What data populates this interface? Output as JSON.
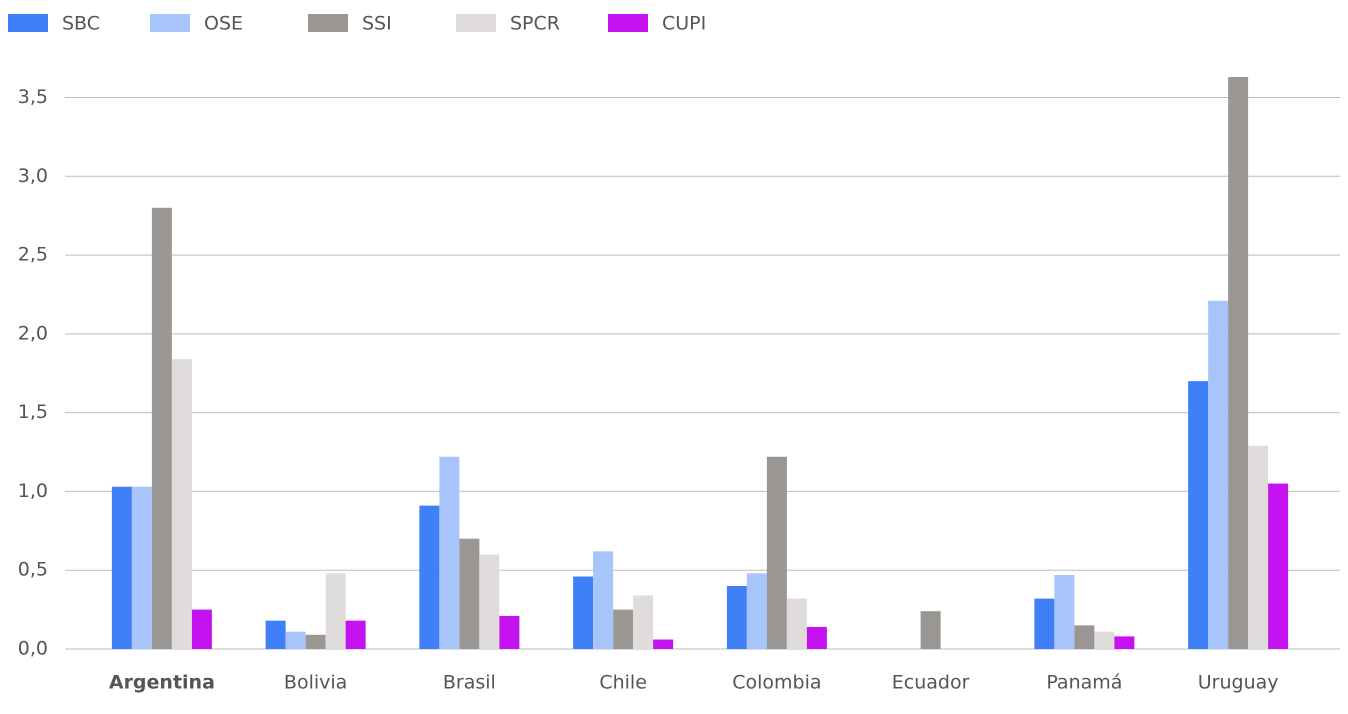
{
  "chart_data": {
    "type": "bar",
    "categories": [
      "Argentina",
      "Bolivia",
      "Brasil",
      "Chile",
      "Colombia",
      "Ecuador",
      "Panamá",
      "Uruguay"
    ],
    "series": [
      {
        "name": "SBC",
        "color": "#3f80f8",
        "values": [
          1.03,
          0.18,
          0.91,
          0.46,
          0.4,
          0,
          0.32,
          1.7
        ]
      },
      {
        "name": "OSE",
        "color": "#a8c5fb",
        "values": [
          1.03,
          0.11,
          1.22,
          0.62,
          0.48,
          0,
          0.47,
          2.21
        ]
      },
      {
        "name": "SSI",
        "color": "#9a9693",
        "values": [
          2.8,
          0.09,
          0.7,
          0.25,
          1.22,
          0.24,
          0.15,
          3.63
        ]
      },
      {
        "name": "SPCR",
        "color": "#e1dcdc",
        "values": [
          1.84,
          0.48,
          0.6,
          0.34,
          0.32,
          0,
          0.11,
          1.29
        ]
      },
      {
        "name": "CUPI",
        "color": "#c512f0",
        "values": [
          0.25,
          0.18,
          0.21,
          0.06,
          0.14,
          0,
          0.08,
          1.05
        ]
      }
    ],
    "ylim": [
      0,
      3.7
    ],
    "yticks": [
      {
        "value": 0,
        "label": "0,0"
      },
      {
        "value": 0.5,
        "label": "0,5"
      },
      {
        "value": 1,
        "label": "1,0"
      },
      {
        "value": 1.5,
        "label": "1,5"
      },
      {
        "value": 2,
        "label": "2,0"
      },
      {
        "value": 2.5,
        "label": "2,5"
      },
      {
        "value": 3,
        "label": "3,0"
      },
      {
        "value": 3.5,
        "label": "3,5"
      }
    ],
    "grid": true,
    "legend": "top"
  }
}
